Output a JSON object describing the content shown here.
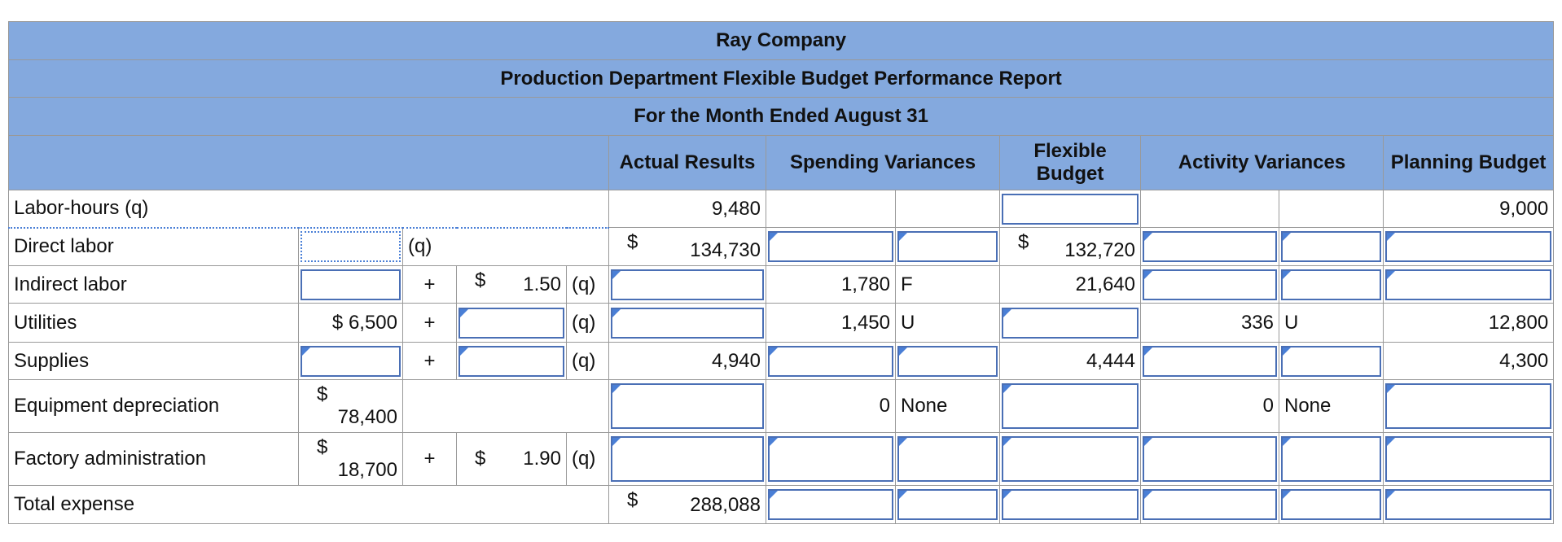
{
  "header": {
    "company": "Ray Company",
    "report": "Production Department Flexible Budget Performance Report",
    "period": "For the Month Ended August 31"
  },
  "columns": {
    "actual": "Actual Results",
    "spending": "Spending Variances",
    "flexible": "Flexible Budget",
    "activity": "Activity Variances",
    "planning": "Planning Budget"
  },
  "rows": [
    {
      "label": "Labor-hours (q)",
      "actual": "9,480",
      "planning": "9,000"
    },
    {
      "label": "Direct labor",
      "q": "(q)",
      "actual_symbol": "$",
      "actual": "134,730",
      "flexible_symbol": "$",
      "flexible": "132,720"
    },
    {
      "label": "Indirect labor",
      "plus": "+",
      "rate_symbol": "$",
      "rate": "1.50",
      "q": "(q)",
      "spending": "1,780",
      "spending_tag": "F",
      "flexible": "21,640"
    },
    {
      "label": "Utilities",
      "fixed": "$ 6,500",
      "plus": "+",
      "q": "(q)",
      "spending": "1,450",
      "spending_tag": "U",
      "activity": "336",
      "activity_tag": "U",
      "planning": "12,800"
    },
    {
      "label": "Supplies",
      "plus": "+",
      "q": "(q)",
      "actual": "4,940",
      "flexible": "4,444",
      "planning": "4,300"
    },
    {
      "label": "Equipment depreciation",
      "fixed_symbol": "$",
      "fixed": "78,400",
      "spending": "0",
      "spending_tag": "None",
      "activity": "0",
      "activity_tag": "None"
    },
    {
      "label": "Factory administration",
      "fixed_symbol": "$",
      "fixed": "18,700",
      "plus": "+",
      "rate_symbol": "$",
      "rate": "1.90",
      "q": "(q)"
    },
    {
      "label": "Total expense",
      "actual_symbol": "$",
      "actual": "288,088"
    }
  ]
}
